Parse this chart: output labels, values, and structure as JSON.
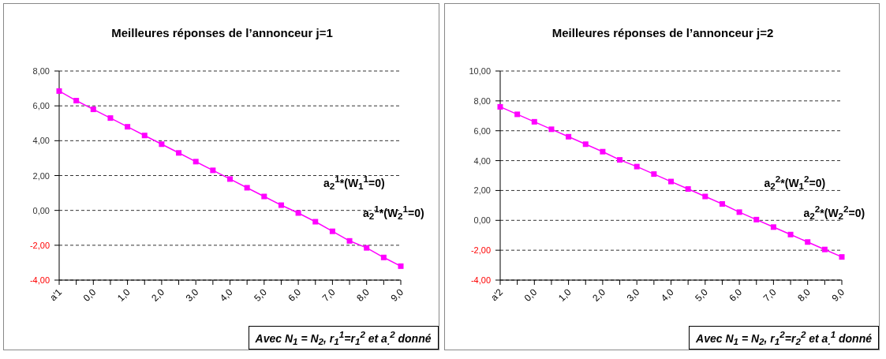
{
  "chart_data": [
    {
      "type": "line",
      "title": "Meilleures réponses de l’annonceur j=1",
      "categories": [
        "a'1",
        null,
        "0,0",
        null,
        "1,0",
        null,
        "2,0",
        null,
        "3,0",
        null,
        "4,0",
        null,
        "5,0",
        null,
        "6,0",
        null,
        "7,0",
        null,
        "8,0",
        null,
        "9,0"
      ],
      "series": [
        {
          "color": "#ff00ff",
          "values": [
            6.85,
            6.3,
            5.8,
            5.3,
            4.8,
            4.3,
            3.8,
            3.3,
            2.8,
            2.3,
            1.8,
            1.3,
            0.8,
            0.3,
            -0.15,
            -0.65,
            -1.2,
            -1.75,
            -2.15,
            -2.7,
            -3.2
          ]
        }
      ],
      "ylim": [
        -4,
        8
      ],
      "yticks": [
        {
          "value": -4,
          "label": "-4,00"
        },
        {
          "value": -2,
          "label": "-2,00"
        },
        {
          "value": 0,
          "label": "0,00"
        },
        {
          "value": 2,
          "label": "2,00"
        },
        {
          "value": 4,
          "label": "4,00"
        },
        {
          "value": 6,
          "label": "6,00"
        },
        {
          "value": 8,
          "label": "8,00"
        }
      ],
      "grid": "y",
      "marker": "square",
      "line_style": "solid",
      "annotations": [
        "a$_{2}$$^{1}$*(W$_{1}$$^{1}$=0)",
        "a$_{2}$$^{1}$*(W$_{2}$$^{1}$=0)",
        "Avec N$_{1}$ = N$_{2}$, r$_{1}$$^{1}$=r$_{1}$$^{2}$ et a$_{.}$$^{2}$ donné"
      ]
    },
    {
      "type": "line",
      "title": "Meilleures réponses de l’annonceur j=2",
      "categories": [
        "a'2",
        null,
        "0,0",
        null,
        "1,0",
        null,
        "2,0",
        null,
        "3,0",
        null,
        "4,0",
        null,
        "5,0",
        null,
        "6,0",
        null,
        "7,0",
        null,
        "8,0",
        null,
        "9,0"
      ],
      "series": [
        {
          "color": "#ff00ff",
          "values": [
            7.6,
            7.1,
            6.6,
            6.1,
            5.6,
            5.1,
            4.6,
            4.05,
            3.6,
            3.1,
            2.6,
            2.1,
            1.6,
            1.1,
            0.55,
            0.05,
            -0.45,
            -0.95,
            -1.45,
            -1.95,
            -2.45
          ]
        }
      ],
      "ylim": [
        -4,
        10
      ],
      "yticks": [
        {
          "value": -4,
          "label": "-4,00"
        },
        {
          "value": -2,
          "label": "-2,00"
        },
        {
          "value": 0,
          "label": "0,00"
        },
        {
          "value": 2,
          "label": "2,00"
        },
        {
          "value": 4,
          "label": "4,00"
        },
        {
          "value": 6,
          "label": "6,00"
        },
        {
          "value": 8,
          "label": "8,00"
        },
        {
          "value": 10,
          "label": "10,00"
        }
      ],
      "grid": "y",
      "marker": "square",
      "line_style": "solid",
      "annotations": [
        "a$_{2}$$^{2}$*(W$_{1}$$^{2}$=0)",
        "a$_{2}$$^{2}$*(W$_{2}$$^{2}$=0)",
        "Avec N$_{1}$ = N$_{2}$, r$_{1}$$^{2}$=r$_{2}$$^{2}$ et a$_{.}$$^{1}$ donné"
      ]
    }
  ]
}
